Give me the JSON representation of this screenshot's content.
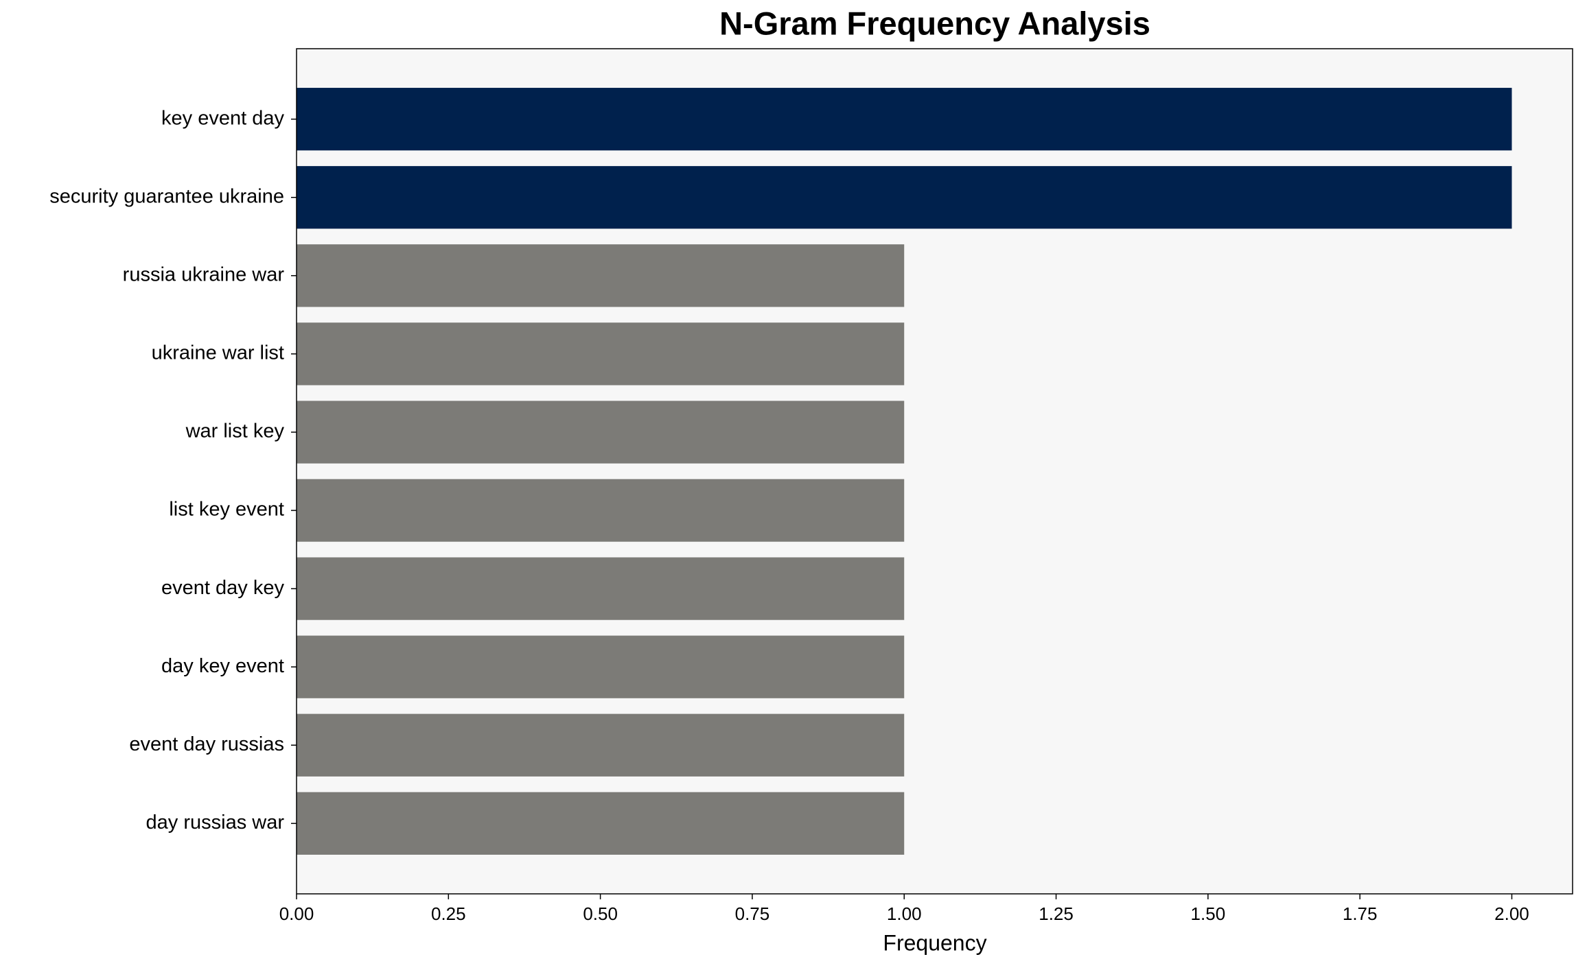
{
  "chart_data": {
    "type": "barh",
    "title": "N-Gram Frequency Analysis",
    "x_label": "Frequency",
    "categories": [
      "key event day",
      "security guarantee ukraine",
      "russia ukraine war",
      "ukraine war list",
      "war list key",
      "list key event",
      "event day key",
      "day key event",
      "event day russias",
      "day russias war"
    ],
    "values": [
      2,
      2,
      1,
      1,
      1,
      1,
      1,
      1,
      1,
      1
    ],
    "colors": [
      "#00214d",
      "#00214d",
      "#7c7b77",
      "#7c7b77",
      "#7c7b77",
      "#7c7b77",
      "#7c7b77",
      "#7c7b77",
      "#7c7b77",
      "#7c7b77"
    ],
    "xlim": [
      0,
      2.1
    ],
    "xticks": [
      {
        "value": 0,
        "label": "0.00"
      },
      {
        "value": 0.25,
        "label": "0.25"
      },
      {
        "value": 0.5,
        "label": "0.50"
      },
      {
        "value": 0.75,
        "label": "0.75"
      },
      {
        "value": 1,
        "label": "1.00"
      },
      {
        "value": 1.25,
        "label": "1.25"
      },
      {
        "value": 1.5,
        "label": "1.50"
      },
      {
        "value": 1.75,
        "label": "1.75"
      },
      {
        "value": 2,
        "label": "2.00"
      }
    ],
    "background": "#f7f7f7"
  }
}
